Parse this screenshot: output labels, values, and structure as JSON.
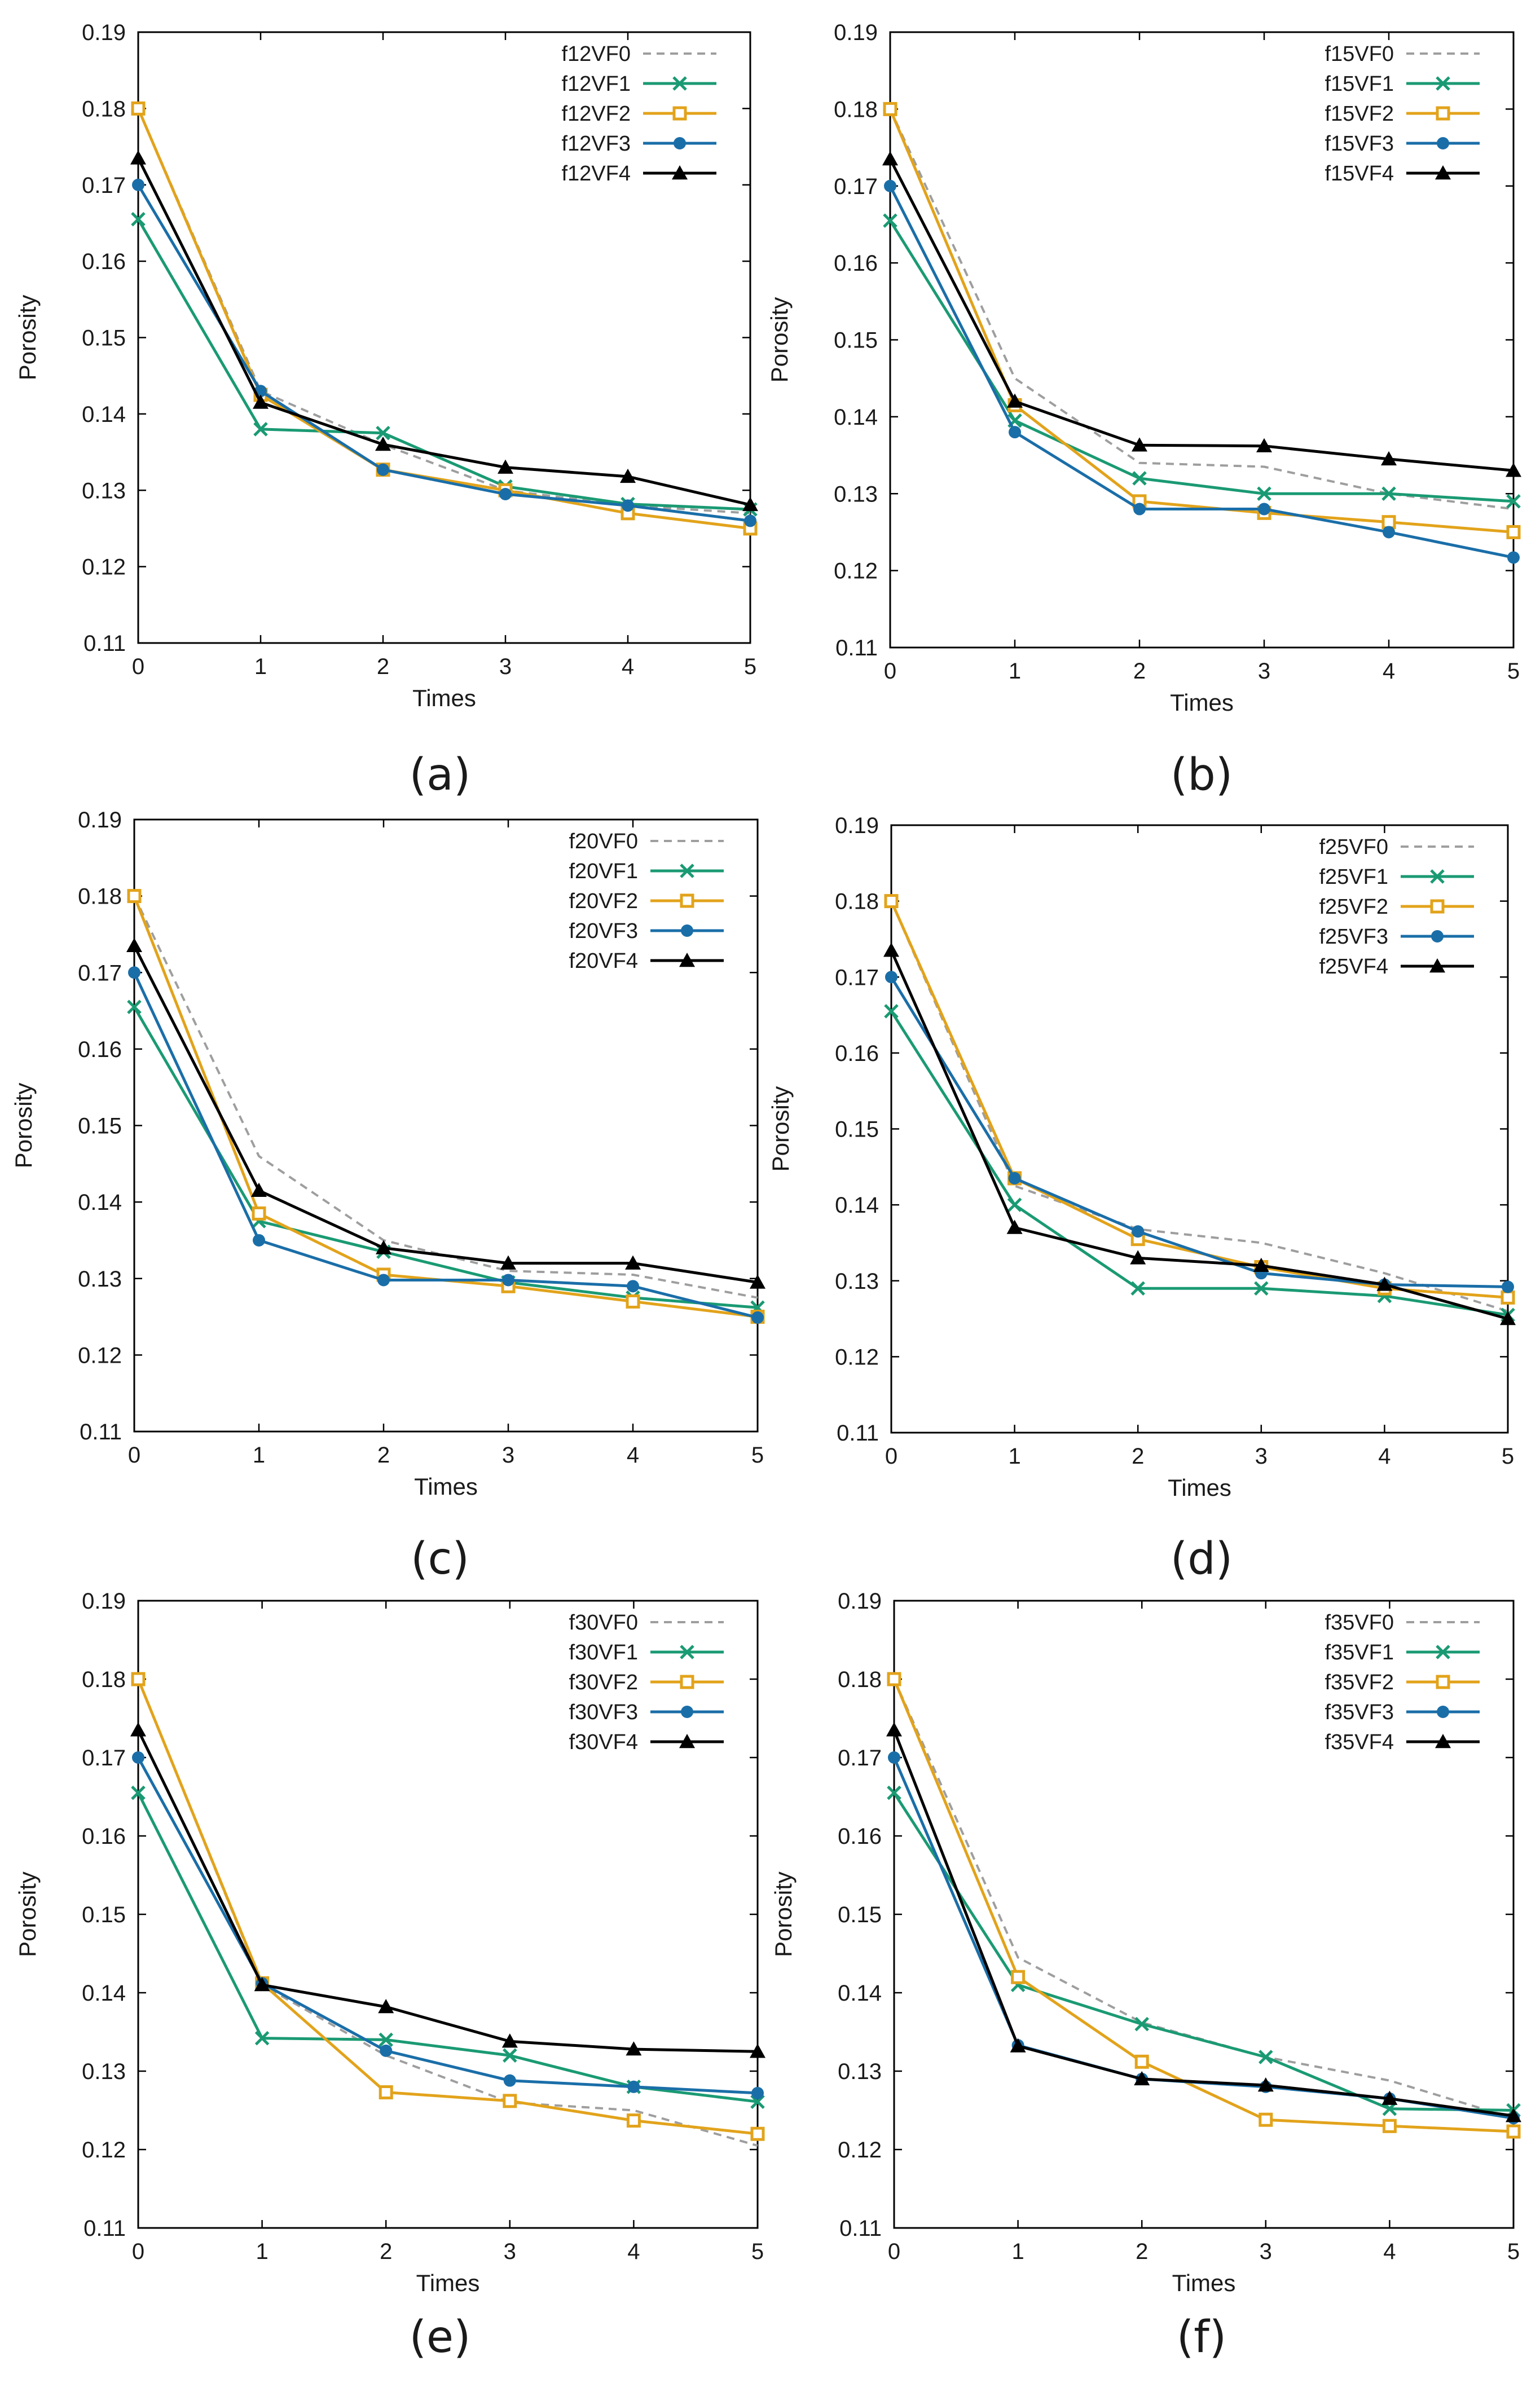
{
  "chart_data": [
    {
      "panel": "(a)",
      "type": "line",
      "xlabel": "Times",
      "ylabel": "Porosity",
      "ylim": [
        0.11,
        0.19
      ],
      "xlim": [
        0,
        5
      ],
      "x_ticks": [
        "0",
        "1",
        "2",
        "3",
        "4",
        "5"
      ],
      "y_ticks": [
        "0.11",
        "0.12",
        "0.13",
        "0.14",
        "0.15",
        "0.16",
        "0.17",
        "0.18",
        "0.19"
      ],
      "x": [
        0,
        1,
        2,
        3,
        4,
        5
      ],
      "series": [
        {
          "name": "f12VF0",
          "values": [
            0.18,
            0.143,
            0.136,
            0.13,
            0.128,
            0.127
          ]
        },
        {
          "name": "f12VF1",
          "values": [
            0.1655,
            0.138,
            0.1375,
            0.1305,
            0.1282,
            0.1275
          ]
        },
        {
          "name": "f12VF2",
          "values": [
            0.18,
            0.1425,
            0.1327,
            0.13,
            0.127,
            0.125
          ]
        },
        {
          "name": "f12VF3",
          "values": [
            0.17,
            0.143,
            0.1327,
            0.1295,
            0.128,
            0.126
          ]
        },
        {
          "name": "f12VF4",
          "values": [
            0.1735,
            0.1415,
            0.136,
            0.133,
            0.1318,
            0.1281
          ]
        }
      ]
    },
    {
      "panel": "(b)",
      "type": "line",
      "xlabel": "Times",
      "ylabel": "Porosity",
      "ylim": [
        0.11,
        0.19
      ],
      "xlim": [
        0,
        5
      ],
      "x_ticks": [
        "0",
        "1",
        "2",
        "3",
        "4",
        "5"
      ],
      "y_ticks": [
        "0.11",
        "0.12",
        "0.13",
        "0.14",
        "0.15",
        "0.16",
        "0.17",
        "0.18",
        "0.19"
      ],
      "x": [
        0,
        1,
        2,
        3,
        4,
        5
      ],
      "series": [
        {
          "name": "f15VF0",
          "values": [
            0.18,
            0.145,
            0.134,
            0.1335,
            0.13,
            0.128
          ]
        },
        {
          "name": "f15VF1",
          "values": [
            0.1655,
            0.1395,
            0.132,
            0.13,
            0.13,
            0.129
          ]
        },
        {
          "name": "f15VF2",
          "values": [
            0.18,
            0.1415,
            0.129,
            0.1275,
            0.1263,
            0.125
          ]
        },
        {
          "name": "f15VF3",
          "values": [
            0.17,
            0.138,
            0.128,
            0.128,
            0.125,
            0.1217
          ]
        },
        {
          "name": "f15VF4",
          "values": [
            0.1735,
            0.142,
            0.1363,
            0.1362,
            0.1345,
            0.133
          ]
        }
      ]
    },
    {
      "panel": "(c)",
      "type": "line",
      "xlabel": "Times",
      "ylabel": "Porosity",
      "ylim": [
        0.11,
        0.19
      ],
      "xlim": [
        0,
        5
      ],
      "x_ticks": [
        "0",
        "1",
        "2",
        "3",
        "4",
        "5"
      ],
      "y_ticks": [
        "0.11",
        "0.12",
        "0.13",
        "0.14",
        "0.15",
        "0.16",
        "0.17",
        "0.18",
        "0.19"
      ],
      "x": [
        0,
        1,
        2,
        3,
        4,
        5
      ],
      "series": [
        {
          "name": "f20VF0",
          "values": [
            0.18,
            0.146,
            0.135,
            0.131,
            0.1305,
            0.1275
          ]
        },
        {
          "name": "f20VF1",
          "values": [
            0.1655,
            0.1375,
            0.1335,
            0.1295,
            0.1275,
            0.1262
          ]
        },
        {
          "name": "f20VF2",
          "values": [
            0.18,
            0.1385,
            0.1305,
            0.129,
            0.127,
            0.125
          ]
        },
        {
          "name": "f20VF3",
          "values": [
            0.17,
            0.135,
            0.1298,
            0.1298,
            0.129,
            0.1249
          ]
        },
        {
          "name": "f20VF4",
          "values": [
            0.1735,
            0.1415,
            0.134,
            0.132,
            0.132,
            0.1295
          ]
        }
      ]
    },
    {
      "panel": "(d)",
      "type": "line",
      "xlabel": "Times",
      "ylabel": "Porosity",
      "ylim": [
        0.11,
        0.19
      ],
      "xlim": [
        0,
        5
      ],
      "x_ticks": [
        "0",
        "1",
        "2",
        "3",
        "4",
        "5"
      ],
      "y_ticks": [
        "0.11",
        "0.12",
        "0.13",
        "0.14",
        "0.15",
        "0.16",
        "0.17",
        "0.18",
        "0.19"
      ],
      "x": [
        0,
        1,
        2,
        3,
        4,
        5
      ],
      "series": [
        {
          "name": "f25VF0",
          "values": [
            0.18,
            0.1425,
            0.1368,
            0.135,
            0.131,
            0.126
          ]
        },
        {
          "name": "f25VF1",
          "values": [
            0.1655,
            0.14,
            0.129,
            0.129,
            0.128,
            0.1255
          ]
        },
        {
          "name": "f25VF2",
          "values": [
            0.18,
            0.1435,
            0.1355,
            0.1318,
            0.129,
            0.1278
          ]
        },
        {
          "name": "f25VF3",
          "values": [
            0.17,
            0.1435,
            0.1365,
            0.131,
            0.1295,
            0.1292
          ]
        },
        {
          "name": "f25VF4",
          "values": [
            0.1735,
            0.137,
            0.133,
            0.132,
            0.1295,
            0.125
          ]
        }
      ]
    },
    {
      "panel": "(e)",
      "type": "line",
      "xlabel": "Times",
      "ylabel": "Porosity",
      "ylim": [
        0.11,
        0.19
      ],
      "xlim": [
        0,
        5
      ],
      "x_ticks": [
        "0",
        "1",
        "2",
        "3",
        "4",
        "5"
      ],
      "y_ticks": [
        "0.11",
        "0.12",
        "0.13",
        "0.14",
        "0.15",
        "0.16",
        "0.17",
        "0.18",
        "0.19"
      ],
      "x": [
        0,
        1,
        2,
        3,
        4,
        5
      ],
      "series": [
        {
          "name": "f30VF0",
          "values": [
            0.18,
            0.141,
            0.132,
            0.126,
            0.125,
            0.1205
          ]
        },
        {
          "name": "f30VF1",
          "values": [
            0.1655,
            0.1342,
            0.134,
            0.132,
            0.128,
            0.1261
          ]
        },
        {
          "name": "f30VF2",
          "values": [
            0.18,
            0.1412,
            0.1273,
            0.1262,
            0.1237,
            0.122
          ]
        },
        {
          "name": "f30VF3",
          "values": [
            0.17,
            0.1412,
            0.1326,
            0.1288,
            0.128,
            0.1272
          ]
        },
        {
          "name": "f30VF4",
          "values": [
            0.1735,
            0.141,
            0.1382,
            0.1338,
            0.1328,
            0.1325
          ]
        }
      ]
    },
    {
      "panel": "(f)",
      "type": "line",
      "xlabel": "Times",
      "ylabel": "Porosity",
      "ylim": [
        0.11,
        0.19
      ],
      "xlim": [
        0,
        5
      ],
      "x_ticks": [
        "0",
        "1",
        "2",
        "3",
        "4",
        "5"
      ],
      "y_ticks": [
        "0.11",
        "0.12",
        "0.13",
        "0.14",
        "0.15",
        "0.16",
        "0.17",
        "0.18",
        "0.19"
      ],
      "x": [
        0,
        1,
        2,
        3,
        4,
        5
      ],
      "series": [
        {
          "name": "f35VF0",
          "values": [
            0.18,
            0.1445,
            0.1362,
            0.1318,
            0.1288,
            0.124
          ]
        },
        {
          "name": "f35VF1",
          "values": [
            0.1655,
            0.141,
            0.136,
            0.1318,
            0.1252,
            0.125
          ]
        },
        {
          "name": "f35VF2",
          "values": [
            0.18,
            0.142,
            0.1312,
            0.1238,
            0.123,
            0.1223
          ]
        },
        {
          "name": "f35VF3",
          "values": [
            0.17,
            0.1333,
            0.129,
            0.128,
            0.1265,
            0.124
          ]
        },
        {
          "name": "f35VF4",
          "values": [
            0.1735,
            0.1332,
            0.129,
            0.1282,
            0.1265,
            0.1243
          ]
        }
      ]
    }
  ],
  "series_style": [
    {
      "color": "#9e9e9e",
      "marker": "none",
      "dashed": true
    },
    {
      "color": "#1a9a73",
      "marker": "x",
      "dashed": false
    },
    {
      "color": "#e2a31b",
      "marker": "square",
      "dashed": false
    },
    {
      "color": "#1a6ea8",
      "marker": "circle",
      "dashed": false
    },
    {
      "color": "#000000",
      "marker": "triangle",
      "dashed": false
    }
  ]
}
